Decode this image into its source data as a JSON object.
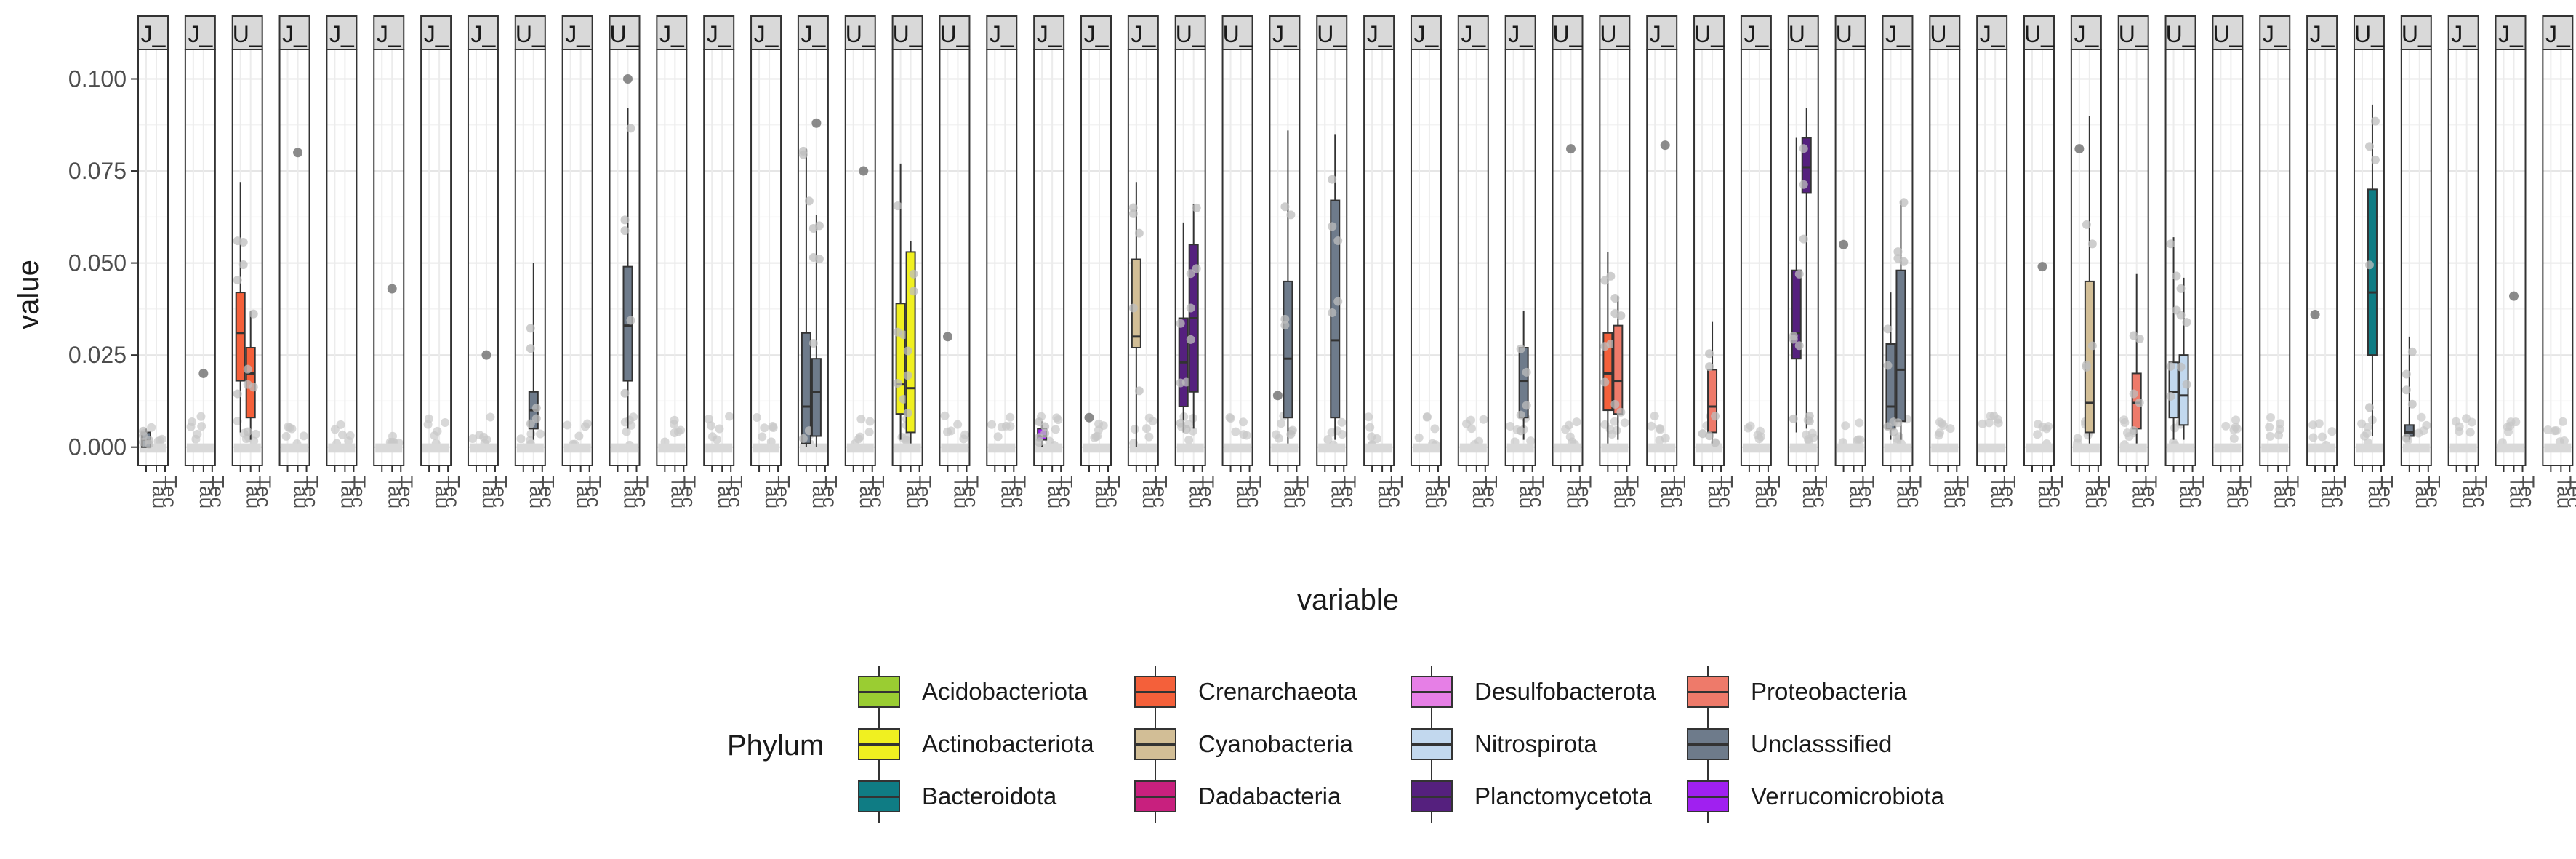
{
  "chart_data": {
    "type": "boxplot",
    "facet_count": 52,
    "facet_labels": [
      "J_",
      "J_",
      "U_",
      "J_",
      "J_",
      "J_",
      "J_",
      "J_",
      "U_",
      "J_",
      "U_",
      "J_",
      "J_",
      "J_",
      "J_",
      "U_",
      "U_",
      "U_",
      "J_",
      "J_",
      "J_",
      "J_",
      "U_",
      "U_",
      "J_",
      "U_",
      "J_",
      "J_",
      "J_",
      "J_",
      "U_",
      "U_",
      "J_",
      "U_",
      "J_",
      "U_",
      "U_",
      "J_",
      "U_",
      "J_",
      "U_",
      "J_",
      "U_",
      "U_",
      "U_",
      "J_",
      "J_",
      "U_",
      "U_",
      "J_",
      "J_",
      "J_"
    ],
    "x_tick_labels": [
      "Tau",
      "Tec"
    ],
    "xlabel": "variable",
    "ylabel": "value",
    "ylim": [
      -0.005,
      0.108
    ],
    "y_ticks": [
      0.0,
      0.025,
      0.05,
      0.075,
      0.1
    ],
    "y_tick_labels": [
      "0.000",
      "0.025",
      "0.050",
      "0.075",
      "0.100"
    ],
    "grid": true,
    "legend_title": "Phylum",
    "legend_position": "bottom",
    "legend": [
      {
        "name": "Acidobacteriota",
        "color": "#9ACD32"
      },
      {
        "name": "Crenarchaeota",
        "color": "#F4603A"
      },
      {
        "name": "Desulfobacterota",
        "color": "#E67FE6"
      },
      {
        "name": "Proteobacteria",
        "color": "#EE7A6A"
      },
      {
        "name": "Actinobacteriota",
        "color": "#F0F020"
      },
      {
        "name": "Cyanobacteria",
        "color": "#D2BE96"
      },
      {
        "name": "Nitrospirota",
        "color": "#C2D8EE"
      },
      {
        "name": "Unclasssified",
        "color": "#6E7B8B"
      },
      {
        "name": "Bacteroidota",
        "color": "#0F7C84"
      },
      {
        "name": "Dadabacteria",
        "color": "#C8207E"
      },
      {
        "name": "Planctomycetota",
        "color": "#55207E"
      },
      {
        "name": "Verrucomicrobiota",
        "color": "#A020F0"
      }
    ],
    "boxes": [
      {
        "facet": 1,
        "pos": 1,
        "phylum": "Unclasssified",
        "q1": 0.0,
        "median": 0.002,
        "q3": 0.004,
        "min": 0.0,
        "max": 0.005
      },
      {
        "facet": 3,
        "pos": 1,
        "phylum": "Crenarchaeota",
        "q1": 0.018,
        "median": 0.031,
        "q3": 0.042,
        "min": 0.004,
        "max": 0.072
      },
      {
        "facet": 3,
        "pos": 2,
        "phylum": "Crenarchaeota",
        "q1": 0.008,
        "median": 0.02,
        "q3": 0.027,
        "min": 0.002,
        "max": 0.037
      },
      {
        "facet": 9,
        "pos": 2,
        "phylum": "Unclasssified",
        "q1": 0.005,
        "median": 0.01,
        "q3": 0.015,
        "min": 0.002,
        "max": 0.05
      },
      {
        "facet": 11,
        "pos": 2,
        "phylum": "Unclasssified",
        "q1": 0.018,
        "median": 0.033,
        "q3": 0.049,
        "min": 0.005,
        "max": 0.092
      },
      {
        "facet": 15,
        "pos": 1,
        "phylum": "Unclasssified",
        "q1": 0.001,
        "median": 0.011,
        "q3": 0.031,
        "min": 0.0,
        "max": 0.081
      },
      {
        "facet": 15,
        "pos": 2,
        "phylum": "Unclasssified",
        "q1": 0.003,
        "median": 0.015,
        "q3": 0.024,
        "min": 0.0,
        "max": 0.063
      },
      {
        "facet": 17,
        "pos": 1,
        "phylum": "Actinobacteriota",
        "q1": 0.009,
        "median": 0.017,
        "q3": 0.039,
        "min": 0.002,
        "max": 0.077
      },
      {
        "facet": 17,
        "pos": 2,
        "phylum": "Actinobacteriota",
        "q1": 0.004,
        "median": 0.016,
        "q3": 0.053,
        "min": 0.001,
        "max": 0.056
      },
      {
        "facet": 20,
        "pos": 1,
        "phylum": "Verrucomicrobiota",
        "q1": 0.002,
        "median": 0.003,
        "q3": 0.005,
        "min": 0.0,
        "max": 0.007
      },
      {
        "facet": 22,
        "pos": 1,
        "phylum": "Cyanobacteria",
        "q1": 0.027,
        "median": 0.03,
        "q3": 0.051,
        "min": 0.0,
        "max": 0.072
      },
      {
        "facet": 23,
        "pos": 1,
        "phylum": "Planctomycetota",
        "q1": 0.011,
        "median": 0.023,
        "q3": 0.035,
        "min": 0.004,
        "max": 0.061
      },
      {
        "facet": 23,
        "pos": 2,
        "phylum": "Planctomycetota",
        "q1": 0.015,
        "median": 0.035,
        "q3": 0.055,
        "min": 0.005,
        "max": 0.066
      },
      {
        "facet": 25,
        "pos": 2,
        "phylum": "Unclasssified",
        "q1": 0.008,
        "median": 0.024,
        "q3": 0.045,
        "min": 0.001,
        "max": 0.086
      },
      {
        "facet": 26,
        "pos": 2,
        "phylum": "Unclasssified",
        "q1": 0.008,
        "median": 0.029,
        "q3": 0.067,
        "min": 0.002,
        "max": 0.085
      },
      {
        "facet": 30,
        "pos": 2,
        "phylum": "Unclasssified",
        "q1": 0.008,
        "median": 0.018,
        "q3": 0.027,
        "min": 0.002,
        "max": 0.037
      },
      {
        "facet": 32,
        "pos": 1,
        "phylum": "Crenarchaeota",
        "q1": 0.01,
        "median": 0.02,
        "q3": 0.031,
        "min": 0.001,
        "max": 0.053
      },
      {
        "facet": 32,
        "pos": 2,
        "phylum": "Proteobacteria",
        "q1": 0.009,
        "median": 0.018,
        "q3": 0.033,
        "min": 0.002,
        "max": 0.041
      },
      {
        "facet": 34,
        "pos": 2,
        "phylum": "Proteobacteria",
        "q1": 0.004,
        "median": 0.011,
        "q3": 0.021,
        "min": 0.001,
        "max": 0.034
      },
      {
        "facet": 36,
        "pos": 1,
        "phylum": "Planctomycetota",
        "q1": 0.024,
        "median": 0.031,
        "q3": 0.048,
        "min": 0.004,
        "max": 0.084
      },
      {
        "facet": 36,
        "pos": 2,
        "phylum": "Planctomycetota",
        "q1": 0.069,
        "median": 0.076,
        "q3": 0.084,
        "min": 0.005,
        "max": 0.092
      },
      {
        "facet": 38,
        "pos": 1,
        "phylum": "Unclasssified",
        "q1": 0.005,
        "median": 0.011,
        "q3": 0.028,
        "min": 0.002,
        "max": 0.042
      },
      {
        "facet": 38,
        "pos": 2,
        "phylum": "Unclasssified",
        "q1": 0.007,
        "median": 0.021,
        "q3": 0.048,
        "min": 0.002,
        "max": 0.067
      },
      {
        "facet": 42,
        "pos": 2,
        "phylum": "Cyanobacteria",
        "q1": 0.004,
        "median": 0.012,
        "q3": 0.045,
        "min": 0.001,
        "max": 0.09
      },
      {
        "facet": 43,
        "pos": 2,
        "phylum": "Proteobacteria",
        "q1": 0.005,
        "median": 0.012,
        "q3": 0.02,
        "min": 0.001,
        "max": 0.047
      },
      {
        "facet": 44,
        "pos": 1,
        "phylum": "Nitrospirota",
        "q1": 0.008,
        "median": 0.015,
        "q3": 0.023,
        "min": 0.002,
        "max": 0.057
      },
      {
        "facet": 44,
        "pos": 2,
        "phylum": "Nitrospirota",
        "q1": 0.006,
        "median": 0.014,
        "q3": 0.025,
        "min": 0.002,
        "max": 0.046
      },
      {
        "facet": 48,
        "pos": 2,
        "phylum": "Bacteroidota",
        "q1": 0.025,
        "median": 0.042,
        "q3": 0.07,
        "min": 0.003,
        "max": 0.093
      },
      {
        "facet": 49,
        "pos": 1,
        "phylum": "Unclasssified",
        "q1": 0.003,
        "median": 0.004,
        "q3": 0.006,
        "min": 0.002,
        "max": 0.03
      }
    ],
    "outliers": [
      {
        "facet": 2,
        "pos": 2,
        "value": 0.02
      },
      {
        "facet": 4,
        "pos": 2,
        "value": 0.08
      },
      {
        "facet": 6,
        "pos": 2,
        "value": 0.043
      },
      {
        "facet": 8,
        "pos": 2,
        "value": 0.025
      },
      {
        "facet": 11,
        "pos": 2,
        "value": 0.1
      },
      {
        "facet": 15,
        "pos": 2,
        "value": 0.088
      },
      {
        "facet": 16,
        "pos": 2,
        "value": 0.075
      },
      {
        "facet": 18,
        "pos": 1,
        "value": 0.03
      },
      {
        "facet": 21,
        "pos": 1,
        "value": 0.008
      },
      {
        "facet": 25,
        "pos": 1,
        "value": 0.014
      },
      {
        "facet": 31,
        "pos": 2,
        "value": 0.081
      },
      {
        "facet": 33,
        "pos": 2,
        "value": 0.082
      },
      {
        "facet": 37,
        "pos": 1,
        "value": 0.055
      },
      {
        "facet": 41,
        "pos": 2,
        "value": 0.049
      },
      {
        "facet": 42,
        "pos": 1,
        "value": 0.081
      },
      {
        "facet": 47,
        "pos": 1,
        "value": 0.036
      },
      {
        "facet": 51,
        "pos": 2,
        "value": 0.041
      }
    ]
  }
}
